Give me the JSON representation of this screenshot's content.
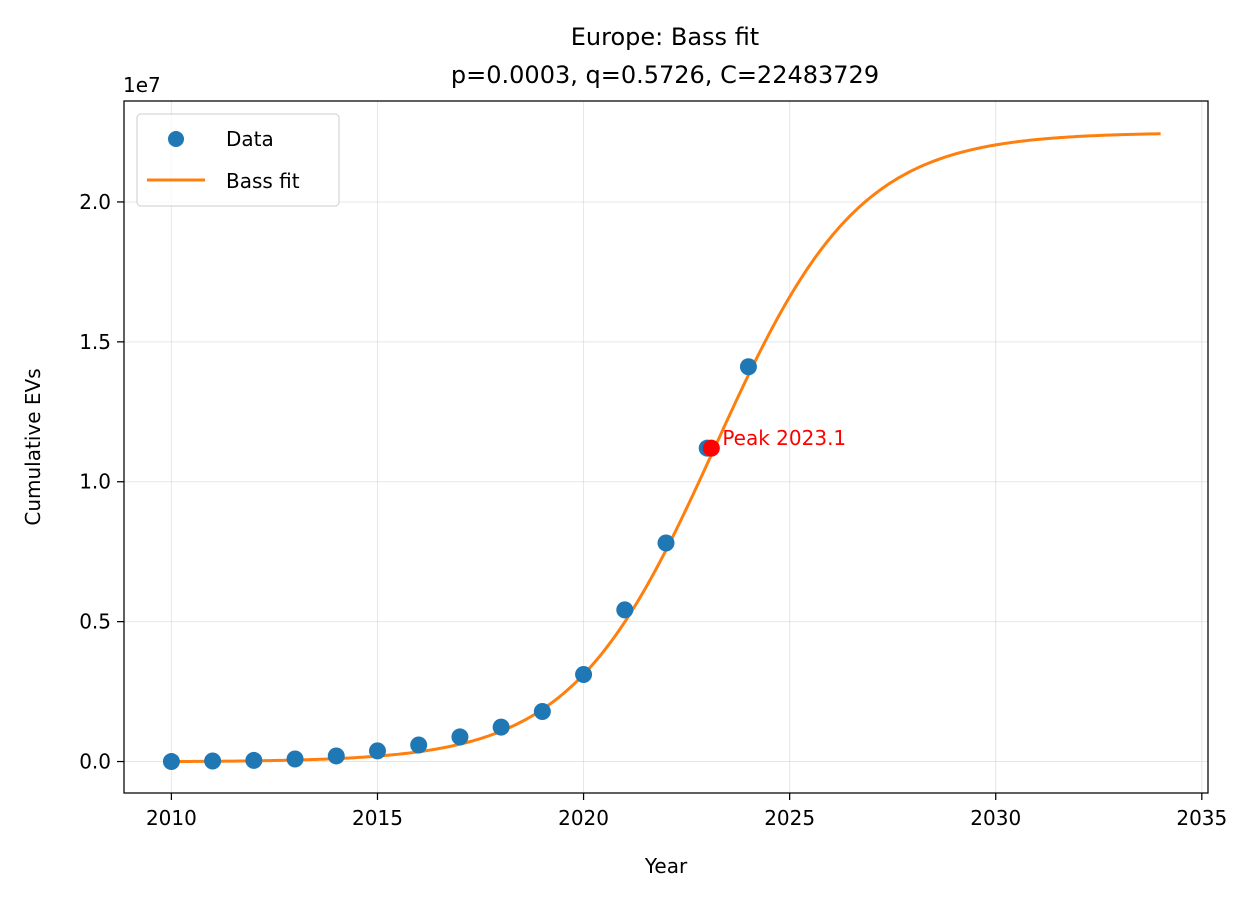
{
  "chart_data": {
    "type": "line",
    "title": "Europe: Bass fit",
    "subtitle": "p=0.0003, q=0.5726, C=22483729",
    "xlabel": "Year",
    "ylabel": "Cumulative EVs",
    "y_offset_label": "1e7",
    "xlim": [
      2008.85,
      2035.15
    ],
    "ylim": [
      -1124186,
      23608000
    ],
    "y_scale_factor": 10000000,
    "grid": true,
    "legend_position": "top-left",
    "x_ticks": [
      2010,
      2015,
      2020,
      2025,
      2030,
      2035
    ],
    "x_tick_labels": [
      "2010",
      "2015",
      "2020",
      "2025",
      "2030",
      "2035"
    ],
    "y_ticks": [
      0,
      5000000,
      10000000,
      15000000,
      20000000
    ],
    "y_tick_labels": [
      "0.0",
      "0.5",
      "1.0",
      "1.5",
      "2.0"
    ],
    "bass_params": {
      "p": 0.0003,
      "q": 0.5726,
      "C": 22483729,
      "x0": 2010
    },
    "series": [
      {
        "name": "Data",
        "kind": "scatter",
        "color": "#1f77b4",
        "x": [
          2010,
          2011,
          2012,
          2013,
          2014,
          2015,
          2016,
          2017,
          2018,
          2019,
          2020,
          2021,
          2022,
          2023,
          2024
        ],
        "y": [
          0,
          20000,
          40000,
          90000,
          200000,
          380000,
          590000,
          880000,
          1230000,
          1790000,
          3110000,
          5420000,
          7810000,
          11200000,
          14110000
        ]
      },
      {
        "name": "Bass fit",
        "kind": "line",
        "color": "#ff7f0e",
        "x_range": [
          2010,
          2034
        ]
      }
    ],
    "annotations": [
      {
        "text": "Peak 2023.1",
        "x": 2023.1,
        "y": 11200000,
        "color": "#ff0000"
      }
    ]
  }
}
